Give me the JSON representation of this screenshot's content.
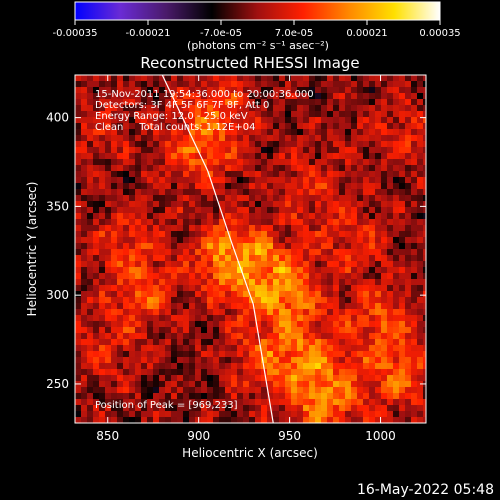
{
  "chart_data": {
    "type": "heatmap",
    "title": "Reconstructed RHESSI Image",
    "xlabel": "Heliocentric X (arcsec)",
    "ylabel": "Heliocentric Y (arcsec)",
    "xlim": [
      832,
      1025
    ],
    "ylim": [
      228,
      424
    ],
    "xticks": [
      850,
      900,
      950,
      1000
    ],
    "yticks": [
      250,
      300,
      350,
      400
    ],
    "colorbar": {
      "label": "(photons cm⁻² s⁻¹ asec⁻²)",
      "range": [
        -0.00035,
        0.00035
      ],
      "ticks": [
        "-0.00035",
        "-0.00021",
        "-7.0e-05",
        "7.0e-05",
        "0.00021",
        "0.00035"
      ],
      "stops": [
        "#0000ff",
        "#6a2bd4",
        "#4a1a6a",
        "#000000",
        "#a01010",
        "#ff2000",
        "#ff8800",
        "#ffe000",
        "#ffffff"
      ]
    },
    "annotations": [
      "15-Nov-2011 19:54:36.000 to 20:00:36.000",
      "Detectors: 3F 4F 5F 6F 7F 8F, Att 0",
      "Energy Range: 12.0 - 25.0 keV",
      "Clean     Total counts: 1.12E+04"
    ],
    "peak_label": "Position of Peak = [969,233]",
    "peak": [
      969,
      233
    ],
    "limb_curve": [
      [
        880,
        424
      ],
      [
        905,
        370
      ],
      [
        918,
        330
      ],
      [
        930,
        295
      ],
      [
        941,
        228
      ]
    ],
    "emission_sources": [
      {
        "x": 918,
        "y": 322,
        "intensity": 1.0
      },
      {
        "x": 935,
        "y": 310,
        "intensity": 0.8
      },
      {
        "x": 900,
        "y": 380,
        "intensity": 0.7
      },
      {
        "x": 908,
        "y": 405,
        "intensity": 0.55
      },
      {
        "x": 870,
        "y": 300,
        "intensity": 0.6
      },
      {
        "x": 860,
        "y": 330,
        "intensity": 0.45
      },
      {
        "x": 950,
        "y": 300,
        "intensity": 0.65
      },
      {
        "x": 960,
        "y": 265,
        "intensity": 0.7
      },
      {
        "x": 969,
        "y": 240,
        "intensity": 0.85
      },
      {
        "x": 1000,
        "y": 285,
        "intensity": 0.6
      },
      {
        "x": 1010,
        "y": 255,
        "intensity": 0.65
      },
      {
        "x": 985,
        "y": 330,
        "intensity": 0.45
      },
      {
        "x": 960,
        "y": 360,
        "intensity": 0.4
      },
      {
        "x": 1010,
        "y": 390,
        "intensity": 0.4
      },
      {
        "x": 935,
        "y": 265,
        "intensity": 0.55
      },
      {
        "x": 850,
        "y": 270,
        "intensity": 0.35
      },
      {
        "x": 845,
        "y": 395,
        "intensity": 0.3
      }
    ]
  },
  "footer": {
    "timestamp": "16-May-2022 05:48"
  }
}
